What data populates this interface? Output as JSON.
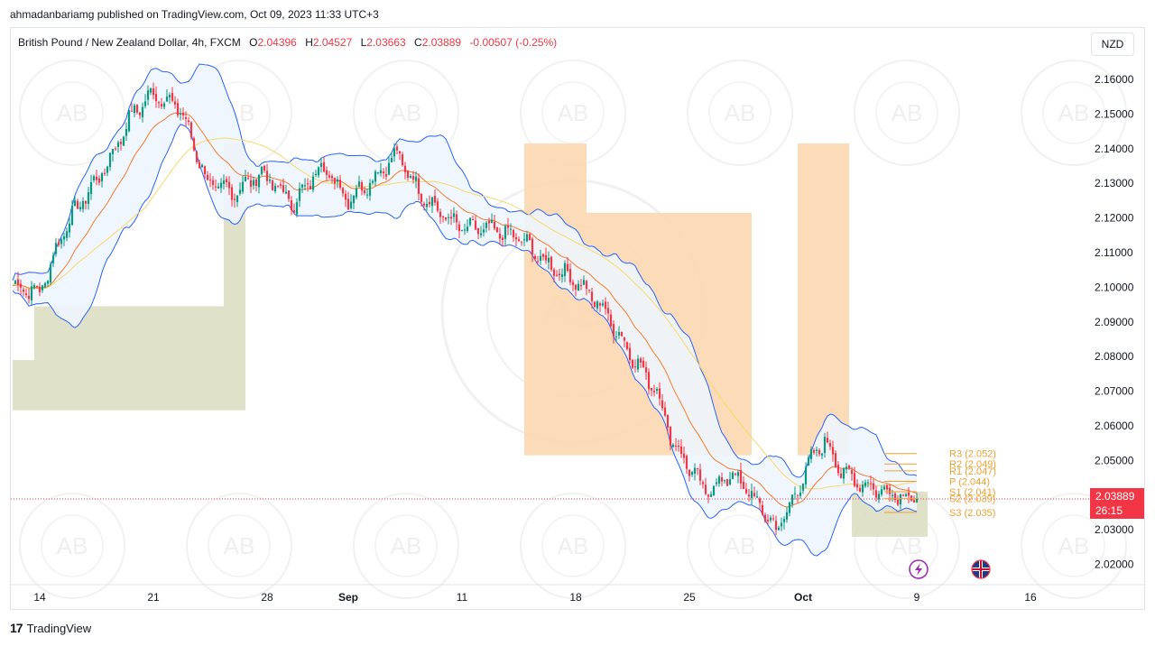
{
  "publisher": "ahmadanbariamg published on TradingView.com, Oct 09, 2023 11:33 UTC+3",
  "legend": {
    "symbol": "British Pound / New Zealand Dollar, 4h, FXCM",
    "open_label": "O",
    "open": "2.04396",
    "high_label": "H",
    "high": "2.04527",
    "low_label": "L",
    "low": "2.03663",
    "close_label": "C",
    "close": "2.03889",
    "change": "-0.00507 (-0.25%)"
  },
  "currency_button": "NZD",
  "price_tag": {
    "price": "2.03889",
    "countdown": "26:15"
  },
  "branding": {
    "logo": "17",
    "name": "TradingView"
  },
  "watermark_text": "AB",
  "colors": {
    "up": "#089981",
    "down": "#f23645",
    "bb_line": "#2962ff",
    "bb_fill": "#eef5fd",
    "ema_orange": "#f57c2e",
    "sma_yellow": "#f7d96b",
    "pivot": "#f0a030",
    "supply": "#fbd7b0",
    "demand": "#d9dcc0"
  },
  "chart_data": {
    "type": "candlestick",
    "title": "British Pound / New Zealand Dollar, 4h, FXCM",
    "ylim": [
      2.015,
      2.165
    ],
    "y_ticks": [
      "2.16000",
      "2.15000",
      "2.14000",
      "2.13000",
      "2.12000",
      "2.11000",
      "2.10000",
      "2.09000",
      "2.08000",
      "2.07000",
      "2.06000",
      "2.05000",
      "2.04000",
      "2.03000",
      "2.02000"
    ],
    "x_ticks": [
      {
        "label": "14",
        "bold": false,
        "bar": 10
      },
      {
        "label": "21",
        "bold": false,
        "bar": 52
      },
      {
        "label": "28",
        "bold": false,
        "bar": 94
      },
      {
        "label": "Sep",
        "bold": true,
        "bar": 124
      },
      {
        "label": "11",
        "bold": false,
        "bar": 166
      },
      {
        "label": "18",
        "bold": false,
        "bar": 208
      },
      {
        "label": "25",
        "bold": false,
        "bar": 250
      },
      {
        "label": "Oct",
        "bold": true,
        "bar": 292
      },
      {
        "label": "9",
        "bold": false,
        "bar": 334
      },
      {
        "label": "16",
        "bold": false,
        "bar": 376
      }
    ],
    "bars_count": 400,
    "anchors": [
      [
        0,
        2.1005
      ],
      [
        10,
        2.0985
      ],
      [
        20,
        2.1185
      ],
      [
        35,
        2.1355
      ],
      [
        44,
        2.15
      ],
      [
        52,
        2.156
      ],
      [
        62,
        2.1515
      ],
      [
        72,
        2.13
      ],
      [
        82,
        2.1275
      ],
      [
        92,
        2.133
      ],
      [
        104,
        2.124
      ],
      [
        114,
        2.1355
      ],
      [
        124,
        2.1255
      ],
      [
        134,
        2.132
      ],
      [
        142,
        2.1385
      ],
      [
        150,
        2.128
      ],
      [
        158,
        2.1215
      ],
      [
        166,
        2.117
      ],
      [
        178,
        2.1165
      ],
      [
        188,
        2.114
      ],
      [
        196,
        2.1075
      ],
      [
        208,
        2.102
      ],
      [
        218,
        2.094
      ],
      [
        228,
        2.081
      ],
      [
        238,
        2.07
      ],
      [
        244,
        2.055
      ],
      [
        250,
        2.048
      ],
      [
        256,
        2.041
      ],
      [
        266,
        2.046
      ],
      [
        274,
        2.039
      ],
      [
        282,
        2.03
      ],
      [
        288,
        2.038
      ],
      [
        294,
        2.049
      ],
      [
        300,
        2.056
      ],
      [
        306,
        2.047
      ],
      [
        312,
        2.044
      ],
      [
        318,
        2.042
      ],
      [
        334,
        2.0389
      ]
    ],
    "last_close": 2.03889,
    "pivots": [
      {
        "label": "R3 (2.052)",
        "value": 2.052
      },
      {
        "label": "R2 (2.049)",
        "value": 2.049
      },
      {
        "label": "R1 (2.047)",
        "value": 2.047
      },
      {
        "label": "P (2.044)",
        "value": 2.044
      },
      {
        "label": "S1 (2.041)",
        "value": 2.041
      },
      {
        "label": "S2 (2.039)",
        "value": 2.039
      },
      {
        "label": "S3 (2.035)",
        "value": 2.035
      }
    ],
    "zones": [
      {
        "kind": "demand",
        "steps": [
          [
            0,
            2.079
          ],
          [
            8,
            2.0945
          ],
          [
            74,
            2.0945
          ],
          [
            78,
            2.1415
          ],
          [
            86,
            2.1415
          ]
        ],
        "bottom": 2.0645,
        "end": 86
      },
      {
        "kind": "supply",
        "steps": [
          [
            189,
            2.1415
          ],
          [
            212,
            2.1415
          ],
          [
            212,
            2.1215
          ],
          [
            273,
            2.1215
          ],
          [
            273,
            2.0515
          ],
          [
            290,
            2.0515
          ],
          [
            290,
            2.1415
          ],
          [
            309,
            2.1415
          ]
        ],
        "bottom_right": 2.0515
      },
      {
        "kind": "demand_small",
        "x0": 310,
        "x1": 338,
        "y0": 2.041,
        "y1": 2.028
      }
    ],
    "events": [
      "lightning-icon",
      "uk-flag-icon"
    ]
  }
}
